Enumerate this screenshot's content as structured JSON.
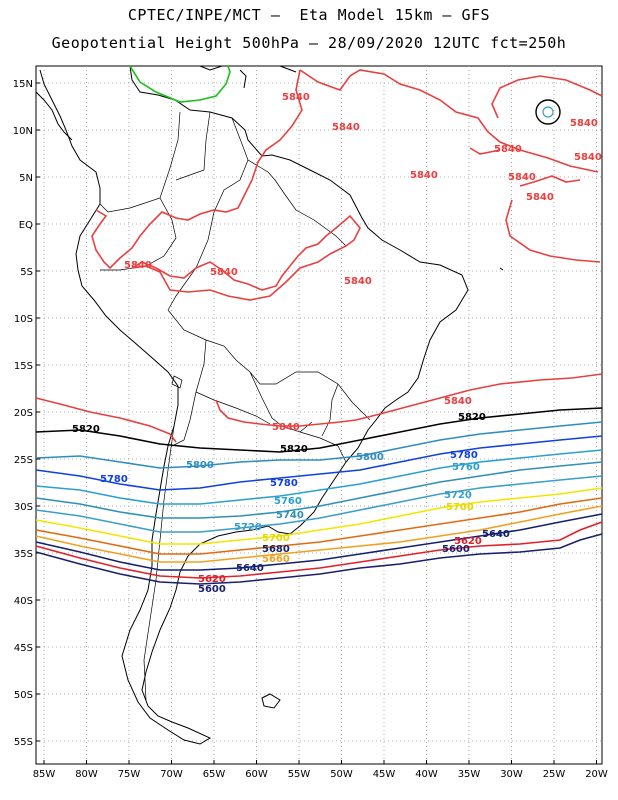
{
  "header": {
    "line1": "CPTEC/INPE/MCT –  Eta Model 15km – GFS",
    "line2": "Geopotential Height 500hPa – 28/09/2020 12UTC fct=250h"
  },
  "axes": {
    "lat_labels": [
      "15N",
      "10N",
      "5N",
      "EQ",
      "5S",
      "10S",
      "15S",
      "20S",
      "25S",
      "30S",
      "35S",
      "40S",
      "45S",
      "50S",
      "55S"
    ],
    "lon_labels": [
      "85W",
      "80W",
      "75W",
      "70W",
      "65W",
      "60W",
      "55W",
      "50W",
      "45W",
      "40W",
      "35W",
      "30W",
      "25W",
      "20W"
    ]
  },
  "colors": {
    "c5600": "#1a1f6e",
    "c5620": "#e0202a",
    "c5640": "#12206e",
    "c5660": "#f0a020",
    "c5680": "#e06a10",
    "c5700": "#f2e600",
    "c5720": "#3a9ec8",
    "c5740": "#2f8fb4",
    "c5760": "#2aa0d0",
    "c5780": "#1040e0",
    "c5800": "#2d8dc0",
    "c5820": "#000000",
    "c5840": "#e84040",
    "c5880": "#18c018",
    "coast": "#000000",
    "grid": "#999999"
  },
  "contour_labels": {
    "l5840_a": "5840",
    "l5840_b": "5840",
    "l5840_c": "5840",
    "l5840_d": "5840",
    "l5840_e": "5840",
    "l5840_f": "5840",
    "l5840_g": "5840",
    "l5840_h": "5840",
    "l5840_i": "5840",
    "l5840_j": "5840",
    "l5840_k": "5840",
    "l5820_a": "5820",
    "l5820_b": "5820",
    "l5820_c": "5820",
    "l5800_a": "5800",
    "l5800_b": "5800",
    "l5780_a": "5780",
    "l5780_b": "5780",
    "l5780_c": "5780",
    "l5760_a": "5760",
    "l5760_b": "5760",
    "l5740_a": "5740",
    "l5720_a": "5720",
    "l5720_b": "5720",
    "l5700_a": "5700",
    "l5700_b": "5700",
    "l5680_a": "5680",
    "l5660_a": "5660",
    "l5640_a": "5640",
    "l5640_b": "5640",
    "l5620_a": "5620",
    "l5620_b": "5620",
    "l5600_a": "5600",
    "l5600_b": "5600"
  }
}
